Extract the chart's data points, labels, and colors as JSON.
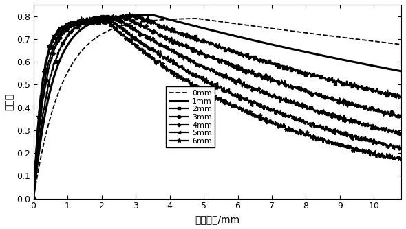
{
  "title": "",
  "xlabel": "赵肤深度/mm",
  "ylabel": "相位角",
  "xlim": [
    0,
    10.8
  ],
  "ylim": [
    0,
    0.85
  ],
  "xticks": [
    0,
    1,
    2,
    3,
    4,
    5,
    6,
    7,
    8,
    9,
    10
  ],
  "yticks": [
    0,
    0.1,
    0.2,
    0.3,
    0.4,
    0.5,
    0.6,
    0.7,
    0.8
  ],
  "background_color": "#ffffff",
  "curve_params": [
    {
      "label": "0mm",
      "peak_x": 4.8,
      "peak_y": 0.79,
      "rise_k": 1.2,
      "fall_k": 0.026,
      "style": "--",
      "marker": "none",
      "lw": 1.3,
      "ms": 4,
      "markevery": 25
    },
    {
      "label": "1mm",
      "peak_x": 3.5,
      "peak_y": 0.805,
      "rise_k": 1.8,
      "fall_k": 0.05,
      "style": "-",
      "marker": "none",
      "lw": 2.2,
      "ms": 4,
      "markevery": 25
    },
    {
      "label": "2mm",
      "peak_x": 3.0,
      "peak_y": 0.8,
      "rise_k": 2.2,
      "fall_k": 0.075,
      "style": "-",
      "marker": "s",
      "lw": 1.6,
      "ms": 3,
      "markevery": 20
    },
    {
      "label": "3mm",
      "peak_x": 2.7,
      "peak_y": 0.793,
      "rise_k": 2.8,
      "fall_k": 0.098,
      "style": "-",
      "marker": "D",
      "lw": 1.6,
      "ms": 3,
      "markevery": 18
    },
    {
      "label": "4mm",
      "peak_x": 2.5,
      "peak_y": 0.785,
      "rise_k": 3.2,
      "fall_k": 0.122,
      "style": "-",
      "marker": "P",
      "lw": 1.6,
      "ms": 3,
      "markevery": 18
    },
    {
      "label": "5mm",
      "peak_x": 2.3,
      "peak_y": 0.778,
      "rise_k": 3.8,
      "fall_k": 0.148,
      "style": "-",
      "marker": "<",
      "lw": 1.6,
      "ms": 3,
      "markevery": 16
    },
    {
      "label": "6mm",
      "peak_x": 2.2,
      "peak_y": 0.772,
      "rise_k": 4.2,
      "fall_k": 0.175,
      "style": "-",
      "marker": "*",
      "lw": 1.6,
      "ms": 4,
      "markevery": 14
    }
  ],
  "noise_seeds": [
    10,
    20,
    30,
    40,
    50,
    60,
    70
  ],
  "noise_scales": [
    0.0,
    0.0,
    0.005,
    0.005,
    0.005,
    0.005,
    0.005
  ]
}
